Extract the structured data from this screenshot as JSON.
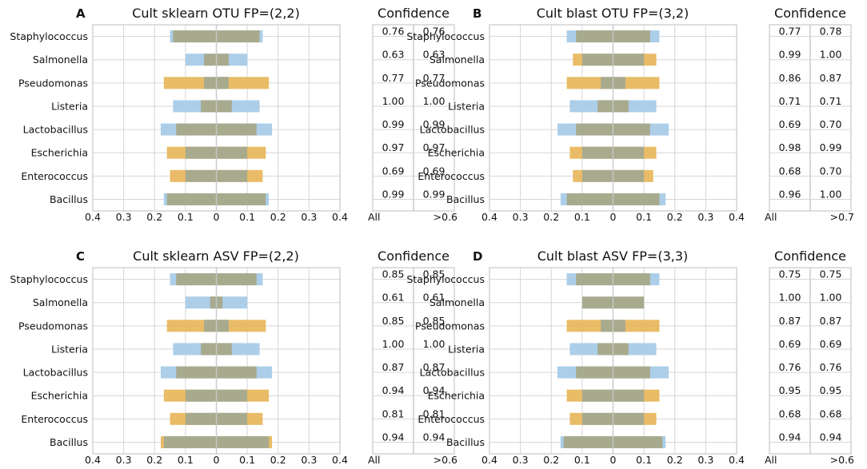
{
  "chart_data": [
    {
      "type": "bar",
      "panel": "A",
      "title": "Cult sklearn OTU FP=(2,2)",
      "categories": [
        "Staphylococcus",
        "Salmonella",
        "Pseudomonas",
        "Listeria",
        "Lactobacillus",
        "Escherichia",
        "Enterococcus",
        "Bacillus"
      ],
      "xlim": [
        -0.4,
        0.4
      ],
      "xticks": [
        "0.4",
        "0.3",
        "0.2",
        "0.1",
        "0",
        "0.1",
        "0.2",
        "0.3",
        "0.4"
      ],
      "series": [
        {
          "name": "blue",
          "color": "#a8cbe8",
          "left": [
            0.15,
            0.1,
            0.0,
            0.14,
            0.18,
            0.0,
            0.0,
            0.17
          ],
          "right": [
            0.15,
            0.1,
            0.0,
            0.14,
            0.18,
            0.0,
            0.0,
            0.17
          ]
        },
        {
          "name": "orange",
          "color": "#e8b85f",
          "left": [
            0.0,
            0.0,
            0.17,
            0.0,
            0.0,
            0.16,
            0.15,
            0.0
          ],
          "right": [
            0.0,
            0.0,
            0.17,
            0.0,
            0.0,
            0.16,
            0.15,
            0.0
          ]
        },
        {
          "name": "overlap",
          "color": "#a8aa8e",
          "left": [
            0.14,
            0.04,
            0.04,
            0.05,
            0.13,
            0.1,
            0.1,
            0.16
          ],
          "right": [
            0.14,
            0.04,
            0.04,
            0.05,
            0.13,
            0.1,
            0.1,
            0.16
          ]
        }
      ],
      "confidence": {
        "title": "Confidence",
        "all": [
          "0.76",
          "0.63",
          "0.77",
          "1.00",
          "0.99",
          "0.97",
          "0.69",
          "0.99"
        ],
        "thresh": [
          "0.76",
          "0.63",
          "0.77",
          "1.00",
          "0.99",
          "0.97",
          "0.69",
          "0.99"
        ],
        "label_all": "All",
        "label_thresh": ">0.6"
      }
    },
    {
      "type": "bar",
      "panel": "B",
      "title": "Cult blast OTU FP=(3,2)",
      "categories": [
        "Staphylococcus",
        "Salmonella",
        "Pseudomonas",
        "Listeria",
        "Lactobacillus",
        "Escherichia",
        "Enterococcus",
        "Bacillus"
      ],
      "xlim": [
        -0.4,
        0.4
      ],
      "xticks": [
        "0.4",
        "0.3",
        "0.2",
        "0.1",
        "0",
        "0.1",
        "0.2",
        "0.3",
        "0.4"
      ],
      "series": [
        {
          "name": "blue",
          "color": "#a8cbe8",
          "left": [
            0.15,
            0.0,
            0.0,
            0.14,
            0.18,
            0.0,
            0.0,
            0.17
          ],
          "right": [
            0.15,
            0.0,
            0.0,
            0.14,
            0.18,
            0.0,
            0.0,
            0.17
          ]
        },
        {
          "name": "orange",
          "color": "#e8b85f",
          "left": [
            0.0,
            0.13,
            0.15,
            0.0,
            0.0,
            0.14,
            0.13,
            0.0
          ],
          "right": [
            0.0,
            0.14,
            0.15,
            0.0,
            0.0,
            0.14,
            0.13,
            0.0
          ]
        },
        {
          "name": "overlap",
          "color": "#a8aa8e",
          "left": [
            0.12,
            0.1,
            0.04,
            0.05,
            0.12,
            0.1,
            0.1,
            0.15
          ],
          "right": [
            0.12,
            0.1,
            0.04,
            0.05,
            0.12,
            0.1,
            0.1,
            0.15
          ]
        }
      ],
      "confidence": {
        "title": "Confidence",
        "all": [
          "0.77",
          "0.99",
          "0.86",
          "0.71",
          "0.69",
          "0.98",
          "0.68",
          "0.96"
        ],
        "thresh": [
          "0.78",
          "1.00",
          "0.87",
          "0.71",
          "0.70",
          "0.99",
          "0.70",
          "1.00"
        ],
        "label_all": "All",
        "label_thresh": ">0.7"
      }
    },
    {
      "type": "bar",
      "panel": "C",
      "title": "Cult sklearn ASV FP=(2,2)",
      "categories": [
        "Staphylococcus",
        "Salmonella",
        "Pseudomonas",
        "Listeria",
        "Lactobacillus",
        "Escherichia",
        "Enterococcus",
        "Bacillus"
      ],
      "xlim": [
        -0.4,
        0.4
      ],
      "xticks": [
        "0.4",
        "0.3",
        "0.2",
        "0.1",
        "0",
        "0.1",
        "0.2",
        "0.3",
        "0.4"
      ],
      "series": [
        {
          "name": "blue",
          "color": "#a8cbe8",
          "left": [
            0.15,
            0.1,
            0.0,
            0.14,
            0.18,
            0.0,
            0.0,
            0.0
          ],
          "right": [
            0.15,
            0.1,
            0.0,
            0.14,
            0.18,
            0.0,
            0.0,
            0.0
          ]
        },
        {
          "name": "orange",
          "color": "#e8b85f",
          "left": [
            0.0,
            0.0,
            0.16,
            0.0,
            0.0,
            0.17,
            0.15,
            0.18
          ],
          "right": [
            0.0,
            0.0,
            0.16,
            0.0,
            0.0,
            0.17,
            0.15,
            0.18
          ]
        },
        {
          "name": "overlap",
          "color": "#a8aa8e",
          "left": [
            0.13,
            0.02,
            0.04,
            0.05,
            0.13,
            0.1,
            0.1,
            0.17
          ],
          "right": [
            0.13,
            0.02,
            0.04,
            0.05,
            0.13,
            0.1,
            0.1,
            0.17
          ]
        }
      ],
      "confidence": {
        "title": "Confidence",
        "all": [
          "0.85",
          "0.61",
          "0.85",
          "1.00",
          "0.87",
          "0.94",
          "0.81",
          "0.94"
        ],
        "thresh": [
          "0.85",
          "0.61",
          "0.85",
          "1.00",
          "0.87",
          "0.94",
          "0.81",
          "0.94"
        ],
        "label_all": "All",
        "label_thresh": ">0.6"
      }
    },
    {
      "type": "bar",
      "panel": "D",
      "title": "Cult blast ASV FP=(3,3)",
      "categories": [
        "Staphylococcus",
        "Salmonella",
        "Pseudomonas",
        "Listeria",
        "Lactobacillus",
        "Escherichia",
        "Enterococcus",
        "Bacillus"
      ],
      "xlim": [
        -0.4,
        0.4
      ],
      "xticks": [
        "0.4",
        "0.3",
        "0.2",
        "0.1",
        "0",
        "0.1",
        "0.2",
        "0.3",
        "0.4"
      ],
      "series": [
        {
          "name": "blue",
          "color": "#a8cbe8",
          "left": [
            0.15,
            0.0,
            0.0,
            0.14,
            0.18,
            0.0,
            0.0,
            0.17
          ],
          "right": [
            0.15,
            0.0,
            0.0,
            0.14,
            0.18,
            0.0,
            0.0,
            0.17
          ]
        },
        {
          "name": "orange",
          "color": "#e8b85f",
          "left": [
            0.0,
            0.0,
            0.15,
            0.0,
            0.0,
            0.15,
            0.14,
            0.0
          ],
          "right": [
            0.0,
            0.0,
            0.15,
            0.0,
            0.0,
            0.15,
            0.14,
            0.0
          ]
        },
        {
          "name": "overlap",
          "color": "#a8aa8e",
          "left": [
            0.12,
            0.1,
            0.04,
            0.05,
            0.12,
            0.1,
            0.1,
            0.16
          ],
          "right": [
            0.12,
            0.1,
            0.04,
            0.05,
            0.12,
            0.1,
            0.1,
            0.16
          ]
        }
      ],
      "confidence": {
        "title": "Confidence",
        "all": [
          "0.75",
          "1.00",
          "0.87",
          "0.69",
          "0.76",
          "0.95",
          "0.68",
          "0.94"
        ],
        "thresh": [
          "0.75",
          "1.00",
          "0.87",
          "0.69",
          "0.76",
          "0.95",
          "0.68",
          "0.94"
        ],
        "label_all": "All",
        "label_thresh": ">0.6"
      }
    }
  ]
}
